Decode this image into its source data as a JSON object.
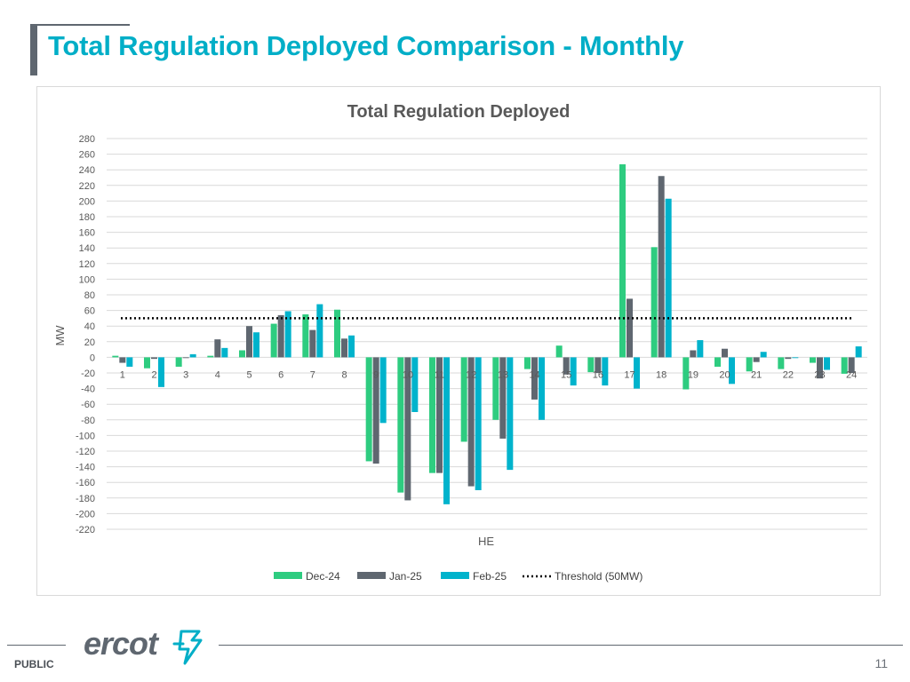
{
  "slide": {
    "title": "Total Regulation Deployed Comparison - Monthly",
    "footer_label": "PUBLIC",
    "page_number": "11",
    "logo_text": "ercot"
  },
  "colors": {
    "title": "#00aec7",
    "dec24": "#2ecc80",
    "jan25": "#5f6770",
    "feb25": "#00b3cc",
    "threshold": "#000000",
    "grid": "#d9d9d9"
  },
  "chart_data": {
    "type": "bar",
    "title": "Total Regulation Deployed",
    "xlabel": "HE",
    "ylabel": "MW",
    "ylim": [
      -220,
      280
    ],
    "ytick_step": 20,
    "grid": true,
    "legend_position": "bottom",
    "categories": [
      "1",
      "2",
      "3",
      "4",
      "5",
      "6",
      "7",
      "8",
      "9",
      "10",
      "11",
      "12",
      "13",
      "14",
      "15",
      "16",
      "17",
      "18",
      "19",
      "20",
      "21",
      "22",
      "23",
      "24"
    ],
    "series": [
      {
        "name": "Dec-24",
        "color": "#2ecc80",
        "values": [
          2,
          -14,
          -12,
          2,
          9,
          43,
          55,
          61,
          -133,
          -173,
          -148,
          -108,
          -80,
          -15,
          15,
          -19,
          247,
          141,
          -41,
          -12,
          -18,
          -15,
          -7,
          -21
        ]
      },
      {
        "name": "Jan-25",
        "color": "#5f6770",
        "values": [
          -7,
          -2,
          -1,
          23,
          40,
          54,
          35,
          24,
          -136,
          -183,
          -148,
          -165,
          -104,
          -54,
          -22,
          -20,
          75,
          232,
          9,
          11,
          -6,
          -2,
          -27,
          -20
        ]
      },
      {
        "name": "Feb-25",
        "color": "#00b3cc",
        "values": [
          -12,
          -38,
          4,
          12,
          32,
          59,
          68,
          28,
          -84,
          -70,
          -188,
          -170,
          -144,
          -80,
          -36,
          -36,
          -40,
          203,
          22,
          -34,
          7,
          -1,
          -16,
          14
        ]
      }
    ],
    "threshold": {
      "name": "Threshold (50MW)",
      "value": 50
    }
  }
}
